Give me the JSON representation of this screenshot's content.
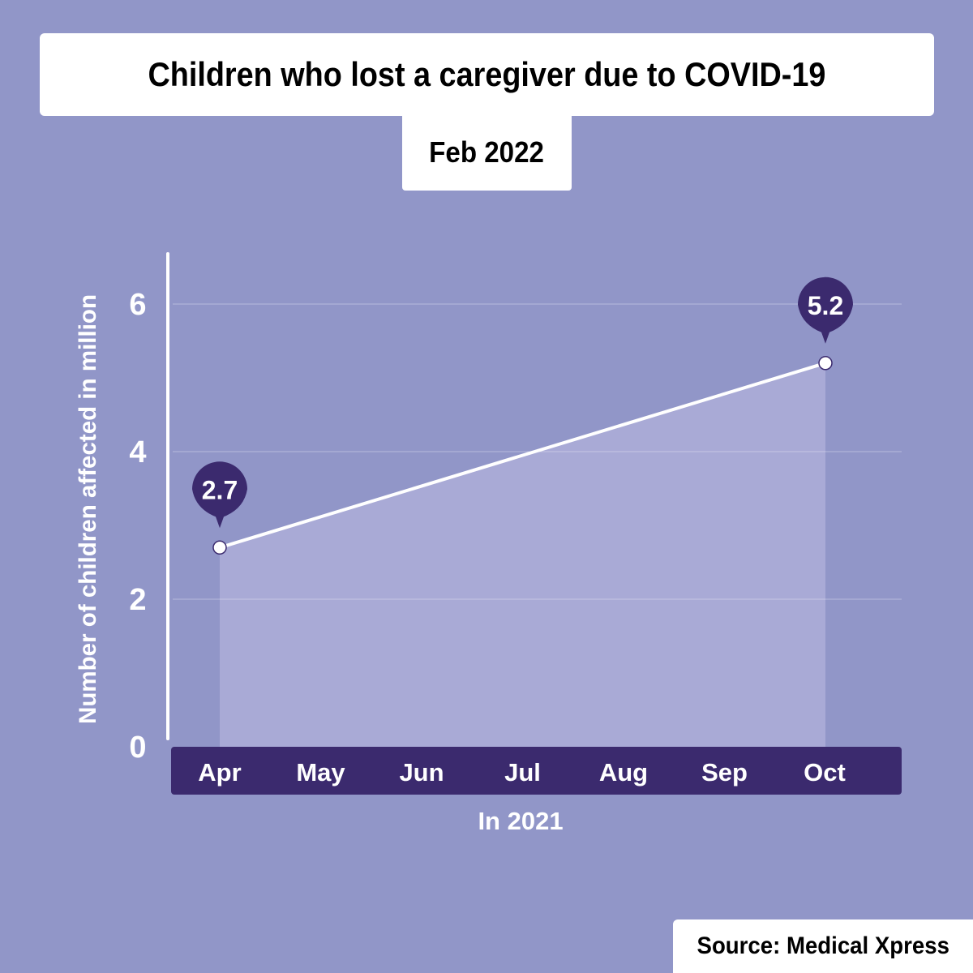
{
  "header": {
    "title": "Children who lost a caregiver due to COVID-19",
    "date": "Feb 2022"
  },
  "source": "Source: Medical Xpress",
  "colors": {
    "background": "#9196c8",
    "area_fill": "#a9aad6",
    "axis_band": "#3b2a6e",
    "marker_bubble": "#3b2a6e",
    "line": "#ffffff"
  },
  "chart_data": {
    "type": "area",
    "title": "Children who lost a caregiver due to COVID-19",
    "subtitle": "Feb 2022",
    "xlabel": "In 2021",
    "ylabel": "Number of children affected in million",
    "categories": [
      "Apr",
      "May",
      "Jun",
      "Jul",
      "Aug",
      "Sep",
      "Oct"
    ],
    "yticks": [
      0,
      2,
      4,
      6
    ],
    "ylim": [
      0,
      6.6
    ],
    "grid": true,
    "series": [
      {
        "points": [
          {
            "x": "Apr",
            "y": 2.7,
            "label": "2.7"
          },
          {
            "x": "Oct",
            "y": 5.2,
            "label": "5.2"
          }
        ]
      }
    ]
  }
}
